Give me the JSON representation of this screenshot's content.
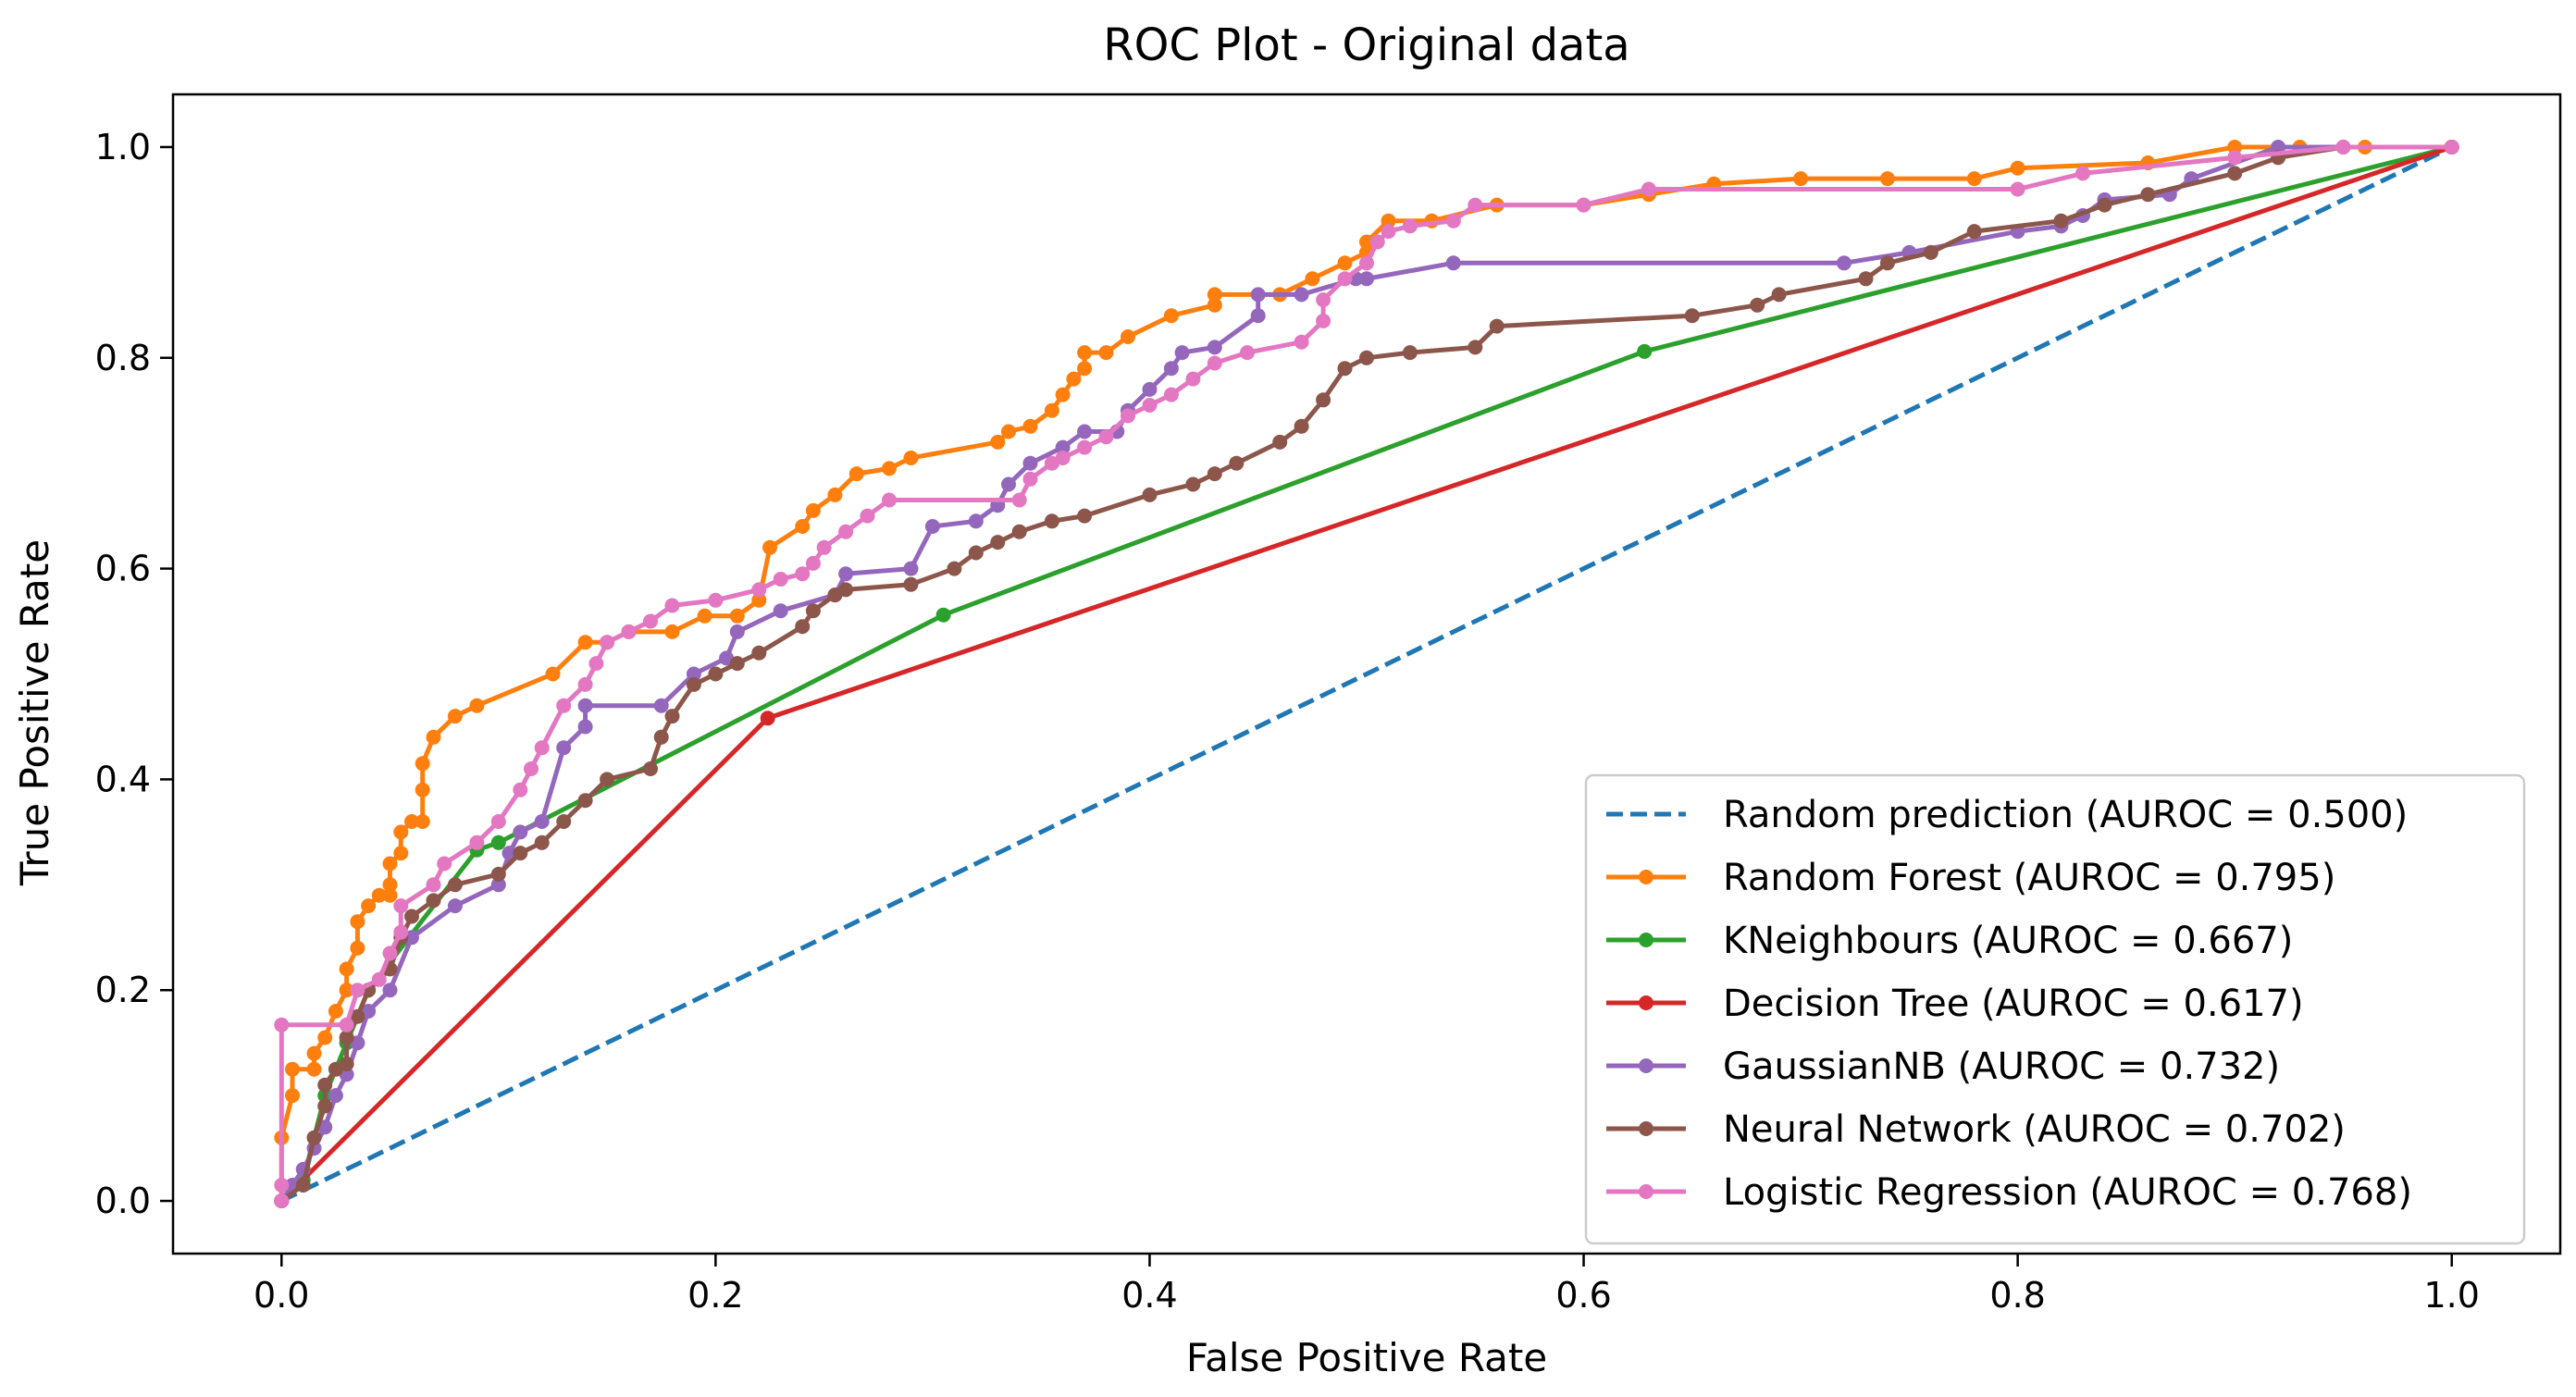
{
  "chart_data": {
    "type": "line",
    "title": "ROC Plot - Original data",
    "xlabel": "False Positive Rate",
    "ylabel": "True Positive Rate",
    "xlim": [
      -0.05,
      1.05
    ],
    "ylim": [
      -0.05,
      1.05
    ],
    "xticks": [
      0.0,
      0.2,
      0.4,
      0.6,
      0.8,
      1.0
    ],
    "yticks": [
      0.0,
      0.2,
      0.4,
      0.6,
      0.8,
      1.0
    ],
    "xtick_labels": [
      "0.0",
      "0.2",
      "0.4",
      "0.6",
      "0.8",
      "1.0"
    ],
    "ytick_labels": [
      "0.0",
      "0.2",
      "0.4",
      "0.6",
      "0.8",
      "1.0"
    ],
    "grid": false,
    "legend_position": "lower-right",
    "series": [
      {
        "name": "Random prediction (AUROC = 0.500)",
        "color": "#1f77b4",
        "dashed": true,
        "markers": false,
        "points": [
          [
            0,
            0
          ],
          [
            1,
            1
          ]
        ]
      },
      {
        "name": "Random Forest (AUROC = 0.795)",
        "color": "#ff7f0e",
        "dashed": false,
        "markers": true,
        "points": [
          [
            0,
            0
          ],
          [
            0,
            0.06
          ],
          [
            0.005,
            0.1
          ],
          [
            0.005,
            0.125
          ],
          [
            0.015,
            0.125
          ],
          [
            0.015,
            0.14
          ],
          [
            0.02,
            0.155
          ],
          [
            0.025,
            0.18
          ],
          [
            0.03,
            0.2
          ],
          [
            0.03,
            0.22
          ],
          [
            0.035,
            0.24
          ],
          [
            0.035,
            0.265
          ],
          [
            0.04,
            0.28
          ],
          [
            0.045,
            0.29
          ],
          [
            0.05,
            0.29
          ],
          [
            0.05,
            0.3
          ],
          [
            0.05,
            0.32
          ],
          [
            0.055,
            0.33
          ],
          [
            0.055,
            0.35
          ],
          [
            0.06,
            0.36
          ],
          [
            0.065,
            0.36
          ],
          [
            0.065,
            0.39
          ],
          [
            0.065,
            0.415
          ],
          [
            0.07,
            0.44
          ],
          [
            0.08,
            0.46
          ],
          [
            0.09,
            0.47
          ],
          [
            0.125,
            0.5
          ],
          [
            0.14,
            0.53
          ],
          [
            0.15,
            0.53
          ],
          [
            0.16,
            0.54
          ],
          [
            0.18,
            0.54
          ],
          [
            0.195,
            0.555
          ],
          [
            0.21,
            0.555
          ],
          [
            0.22,
            0.57
          ],
          [
            0.225,
            0.62
          ],
          [
            0.24,
            0.64
          ],
          [
            0.245,
            0.655
          ],
          [
            0.255,
            0.67
          ],
          [
            0.265,
            0.69
          ],
          [
            0.28,
            0.695
          ],
          [
            0.29,
            0.705
          ],
          [
            0.33,
            0.72
          ],
          [
            0.335,
            0.73
          ],
          [
            0.345,
            0.735
          ],
          [
            0.355,
            0.75
          ],
          [
            0.36,
            0.765
          ],
          [
            0.365,
            0.78
          ],
          [
            0.37,
            0.79
          ],
          [
            0.37,
            0.805
          ],
          [
            0.38,
            0.805
          ],
          [
            0.39,
            0.82
          ],
          [
            0.41,
            0.84
          ],
          [
            0.43,
            0.85
          ],
          [
            0.43,
            0.86
          ],
          [
            0.46,
            0.86
          ],
          [
            0.475,
            0.875
          ],
          [
            0.49,
            0.89
          ],
          [
            0.5,
            0.9
          ],
          [
            0.5,
            0.91
          ],
          [
            0.51,
            0.93
          ],
          [
            0.53,
            0.93
          ],
          [
            0.56,
            0.945
          ],
          [
            0.6,
            0.945
          ],
          [
            0.63,
            0.955
          ],
          [
            0.66,
            0.965
          ],
          [
            0.7,
            0.97
          ],
          [
            0.74,
            0.97
          ],
          [
            0.78,
            0.97
          ],
          [
            0.8,
            0.98
          ],
          [
            0.86,
            0.985
          ],
          [
            0.9,
            1.0
          ],
          [
            0.93,
            1.0
          ],
          [
            0.96,
            1.0
          ],
          [
            1.0,
            1.0
          ]
        ]
      },
      {
        "name": "KNeighbours (AUROC = 0.667)",
        "color": "#2ca02c",
        "dashed": false,
        "markers": true,
        "points": [
          [
            0,
            0
          ],
          [
            0.01,
            0.02
          ],
          [
            0.02,
            0.1
          ],
          [
            0.03,
            0.15
          ],
          [
            0.04,
            0.2
          ],
          [
            0.09,
            0.333
          ],
          [
            0.1,
            0.34
          ],
          [
            0.305,
            0.556
          ],
          [
            0.628,
            0.806
          ],
          [
            1.0,
            1.0
          ]
        ]
      },
      {
        "name": "Decision Tree (AUROC = 0.617)",
        "color": "#d62728",
        "dashed": false,
        "markers": true,
        "points": [
          [
            0,
            0
          ],
          [
            0.224,
            0.458
          ],
          [
            1.0,
            1.0
          ]
        ]
      },
      {
        "name": "GaussianNB (AUROC = 0.732)",
        "color": "#9467bd",
        "dashed": false,
        "markers": true,
        "points": [
          [
            0,
            0
          ],
          [
            0.005,
            0.015
          ],
          [
            0.01,
            0.03
          ],
          [
            0.015,
            0.05
          ],
          [
            0.02,
            0.07
          ],
          [
            0.025,
            0.1
          ],
          [
            0.03,
            0.12
          ],
          [
            0.035,
            0.15
          ],
          [
            0.04,
            0.18
          ],
          [
            0.05,
            0.2
          ],
          [
            0.06,
            0.25
          ],
          [
            0.08,
            0.28
          ],
          [
            0.1,
            0.3
          ],
          [
            0.105,
            0.33
          ],
          [
            0.11,
            0.35
          ],
          [
            0.12,
            0.36
          ],
          [
            0.13,
            0.43
          ],
          [
            0.14,
            0.45
          ],
          [
            0.14,
            0.47
          ],
          [
            0.175,
            0.47
          ],
          [
            0.19,
            0.5
          ],
          [
            0.205,
            0.515
          ],
          [
            0.21,
            0.54
          ],
          [
            0.23,
            0.56
          ],
          [
            0.255,
            0.575
          ],
          [
            0.26,
            0.595
          ],
          [
            0.29,
            0.6
          ],
          [
            0.3,
            0.64
          ],
          [
            0.32,
            0.645
          ],
          [
            0.33,
            0.66
          ],
          [
            0.335,
            0.68
          ],
          [
            0.345,
            0.7
          ],
          [
            0.36,
            0.715
          ],
          [
            0.37,
            0.73
          ],
          [
            0.385,
            0.73
          ],
          [
            0.39,
            0.75
          ],
          [
            0.4,
            0.77
          ],
          [
            0.41,
            0.79
          ],
          [
            0.415,
            0.805
          ],
          [
            0.43,
            0.81
          ],
          [
            0.45,
            0.84
          ],
          [
            0.45,
            0.86
          ],
          [
            0.47,
            0.86
          ],
          [
            0.495,
            0.875
          ],
          [
            0.5,
            0.875
          ],
          [
            0.54,
            0.89
          ],
          [
            0.72,
            0.89
          ],
          [
            0.75,
            0.9
          ],
          [
            0.8,
            0.92
          ],
          [
            0.82,
            0.925
          ],
          [
            0.83,
            0.935
          ],
          [
            0.84,
            0.95
          ],
          [
            0.87,
            0.955
          ],
          [
            0.88,
            0.97
          ],
          [
            0.92,
            1.0
          ],
          [
            1.0,
            1.0
          ]
        ]
      },
      {
        "name": "Neural Network (AUROC = 0.702)",
        "color": "#8c564b",
        "dashed": false,
        "markers": true,
        "points": [
          [
            0,
            0
          ],
          [
            0.01,
            0.015
          ],
          [
            0.015,
            0.06
          ],
          [
            0.02,
            0.09
          ],
          [
            0.02,
            0.11
          ],
          [
            0.025,
            0.125
          ],
          [
            0.03,
            0.13
          ],
          [
            0.03,
            0.155
          ],
          [
            0.035,
            0.175
          ],
          [
            0.04,
            0.2
          ],
          [
            0.05,
            0.22
          ],
          [
            0.055,
            0.25
          ],
          [
            0.06,
            0.27
          ],
          [
            0.07,
            0.285
          ],
          [
            0.08,
            0.3
          ],
          [
            0.1,
            0.31
          ],
          [
            0.11,
            0.33
          ],
          [
            0.12,
            0.34
          ],
          [
            0.13,
            0.36
          ],
          [
            0.14,
            0.38
          ],
          [
            0.15,
            0.4
          ],
          [
            0.17,
            0.41
          ],
          [
            0.175,
            0.44
          ],
          [
            0.18,
            0.46
          ],
          [
            0.19,
            0.49
          ],
          [
            0.2,
            0.5
          ],
          [
            0.21,
            0.51
          ],
          [
            0.22,
            0.52
          ],
          [
            0.24,
            0.545
          ],
          [
            0.245,
            0.56
          ],
          [
            0.255,
            0.575
          ],
          [
            0.26,
            0.58
          ],
          [
            0.29,
            0.585
          ],
          [
            0.31,
            0.6
          ],
          [
            0.32,
            0.615
          ],
          [
            0.33,
            0.625
          ],
          [
            0.34,
            0.635
          ],
          [
            0.355,
            0.645
          ],
          [
            0.37,
            0.65
          ],
          [
            0.4,
            0.67
          ],
          [
            0.42,
            0.68
          ],
          [
            0.43,
            0.69
          ],
          [
            0.44,
            0.7
          ],
          [
            0.46,
            0.72
          ],
          [
            0.47,
            0.735
          ],
          [
            0.48,
            0.76
          ],
          [
            0.49,
            0.79
          ],
          [
            0.5,
            0.8
          ],
          [
            0.52,
            0.805
          ],
          [
            0.55,
            0.81
          ],
          [
            0.56,
            0.83
          ],
          [
            0.65,
            0.84
          ],
          [
            0.68,
            0.85
          ],
          [
            0.69,
            0.86
          ],
          [
            0.73,
            0.875
          ],
          [
            0.74,
            0.89
          ],
          [
            0.76,
            0.9
          ],
          [
            0.78,
            0.92
          ],
          [
            0.82,
            0.93
          ],
          [
            0.84,
            0.945
          ],
          [
            0.86,
            0.955
          ],
          [
            0.9,
            0.975
          ],
          [
            0.92,
            0.99
          ],
          [
            0.95,
            1.0
          ],
          [
            1.0,
            1.0
          ]
        ]
      },
      {
        "name": "Logistic Regression (AUROC = 0.768)",
        "color": "#e377c2",
        "dashed": false,
        "markers": true,
        "points": [
          [
            0,
            0
          ],
          [
            0,
            0.015
          ],
          [
            0,
            0.167
          ],
          [
            0.03,
            0.167
          ],
          [
            0.035,
            0.2
          ],
          [
            0.045,
            0.21
          ],
          [
            0.05,
            0.235
          ],
          [
            0.055,
            0.255
          ],
          [
            0.055,
            0.28
          ],
          [
            0.07,
            0.3
          ],
          [
            0.075,
            0.32
          ],
          [
            0.09,
            0.34
          ],
          [
            0.1,
            0.36
          ],
          [
            0.11,
            0.39
          ],
          [
            0.115,
            0.41
          ],
          [
            0.12,
            0.43
          ],
          [
            0.13,
            0.47
          ],
          [
            0.14,
            0.49
          ],
          [
            0.145,
            0.51
          ],
          [
            0.15,
            0.53
          ],
          [
            0.16,
            0.54
          ],
          [
            0.17,
            0.55
          ],
          [
            0.18,
            0.565
          ],
          [
            0.2,
            0.57
          ],
          [
            0.22,
            0.58
          ],
          [
            0.23,
            0.59
          ],
          [
            0.24,
            0.595
          ],
          [
            0.245,
            0.605
          ],
          [
            0.25,
            0.62
          ],
          [
            0.26,
            0.635
          ],
          [
            0.27,
            0.65
          ],
          [
            0.28,
            0.665
          ],
          [
            0.34,
            0.665
          ],
          [
            0.345,
            0.685
          ],
          [
            0.355,
            0.7
          ],
          [
            0.36,
            0.705
          ],
          [
            0.37,
            0.715
          ],
          [
            0.38,
            0.725
          ],
          [
            0.39,
            0.745
          ],
          [
            0.4,
            0.755
          ],
          [
            0.41,
            0.765
          ],
          [
            0.42,
            0.78
          ],
          [
            0.43,
            0.795
          ],
          [
            0.445,
            0.805
          ],
          [
            0.47,
            0.815
          ],
          [
            0.48,
            0.835
          ],
          [
            0.48,
            0.855
          ],
          [
            0.49,
            0.875
          ],
          [
            0.5,
            0.89
          ],
          [
            0.505,
            0.91
          ],
          [
            0.51,
            0.92
          ],
          [
            0.52,
            0.925
          ],
          [
            0.54,
            0.93
          ],
          [
            0.55,
            0.945
          ],
          [
            0.6,
            0.945
          ],
          [
            0.63,
            0.96
          ],
          [
            0.8,
            0.96
          ],
          [
            0.83,
            0.975
          ],
          [
            0.9,
            0.99
          ],
          [
            0.95,
            1.0
          ],
          [
            1.0,
            1.0
          ]
        ]
      }
    ]
  }
}
